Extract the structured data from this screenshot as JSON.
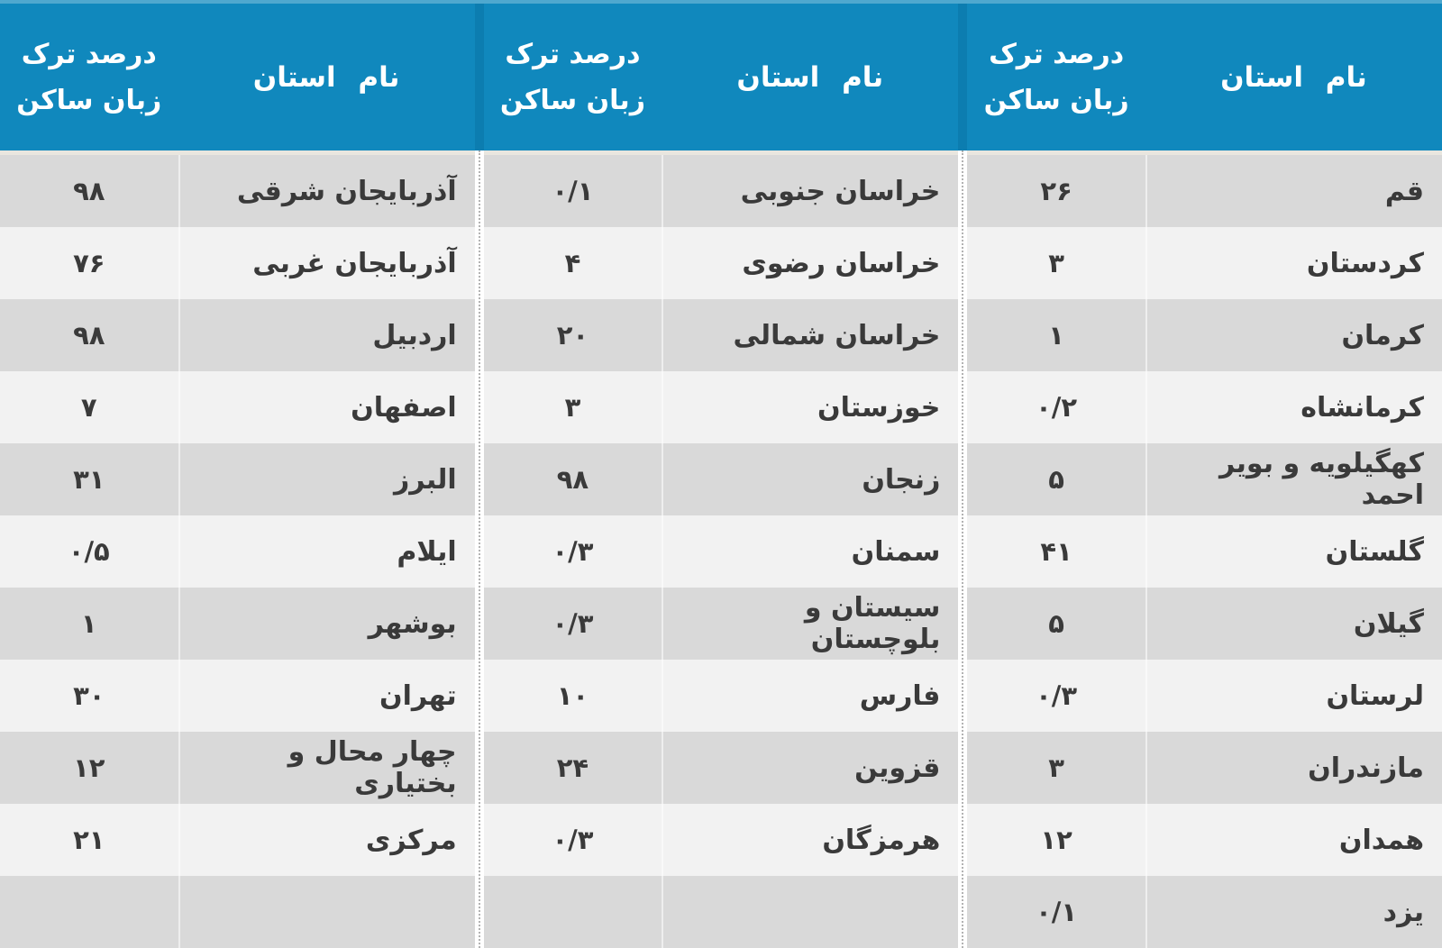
{
  "table": {
    "header": {
      "name_label": "نام استان",
      "pct_line1": "درصد ترک",
      "pct_line2": "زبان ساکن"
    },
    "colors": {
      "header_bg": "#1088bd",
      "header_top_strip": "#4fa8cf",
      "row_dark": "#d9d9d9",
      "row_light": "#f2f2f2",
      "text": "#3a3a3a",
      "header_text": "#ffffff"
    },
    "groups": [
      {
        "position": "right",
        "rows": [
          {
            "name": "قم",
            "value": "۲۶"
          },
          {
            "name": "کردستان",
            "value": "۳"
          },
          {
            "name": "کرمان",
            "value": "۱"
          },
          {
            "name": "کرمانشاه",
            "value": "۰/۲"
          },
          {
            "name": "کهگیلویه و بویر احمد",
            "value": "۵"
          },
          {
            "name": "گلستان",
            "value": "۴۱"
          },
          {
            "name": "گیلان",
            "value": "۵"
          },
          {
            "name": "لرستان",
            "value": "۰/۳"
          },
          {
            "name": "مازندران",
            "value": "۳"
          },
          {
            "name": "همدان",
            "value": "۱۲"
          },
          {
            "name": "یزد",
            "value": "۰/۱"
          }
        ]
      },
      {
        "position": "middle",
        "rows": [
          {
            "name": "خراسان جنوبی",
            "value": "۰/۱"
          },
          {
            "name": "خراسان رضوی",
            "value": "۴"
          },
          {
            "name": "خراسان شمالی",
            "value": "۲۰"
          },
          {
            "name": "خوزستان",
            "value": "۳"
          },
          {
            "name": "زنجان",
            "value": "۹۸"
          },
          {
            "name": "سمنان",
            "value": "۰/۳"
          },
          {
            "name": "سیستان و بلوچستان",
            "value": "۰/۳"
          },
          {
            "name": "فارس",
            "value": "۱۰"
          },
          {
            "name": "قزوین",
            "value": "۲۴"
          },
          {
            "name": "هرمزگان",
            "value": "۰/۳"
          },
          {
            "name": "",
            "value": ""
          }
        ]
      },
      {
        "position": "left",
        "rows": [
          {
            "name": "آذربایجان شرقی",
            "value": "۹۸"
          },
          {
            "name": "آذربایجان غربی",
            "value": "۷۶"
          },
          {
            "name": "اردبیل",
            "value": "۹۸"
          },
          {
            "name": "اصفهان",
            "value": "۷"
          },
          {
            "name": "البرز",
            "value": "۳۱"
          },
          {
            "name": "ایلام",
            "value": "۰/۵"
          },
          {
            "name": "بوشهر",
            "value": "۱"
          },
          {
            "name": "تهران",
            "value": "۳۰"
          },
          {
            "name": "چهار محال و بختیاری",
            "value": "۱۲"
          },
          {
            "name": "مرکزی",
            "value": "۲۱"
          },
          {
            "name": "",
            "value": ""
          }
        ]
      }
    ]
  }
}
